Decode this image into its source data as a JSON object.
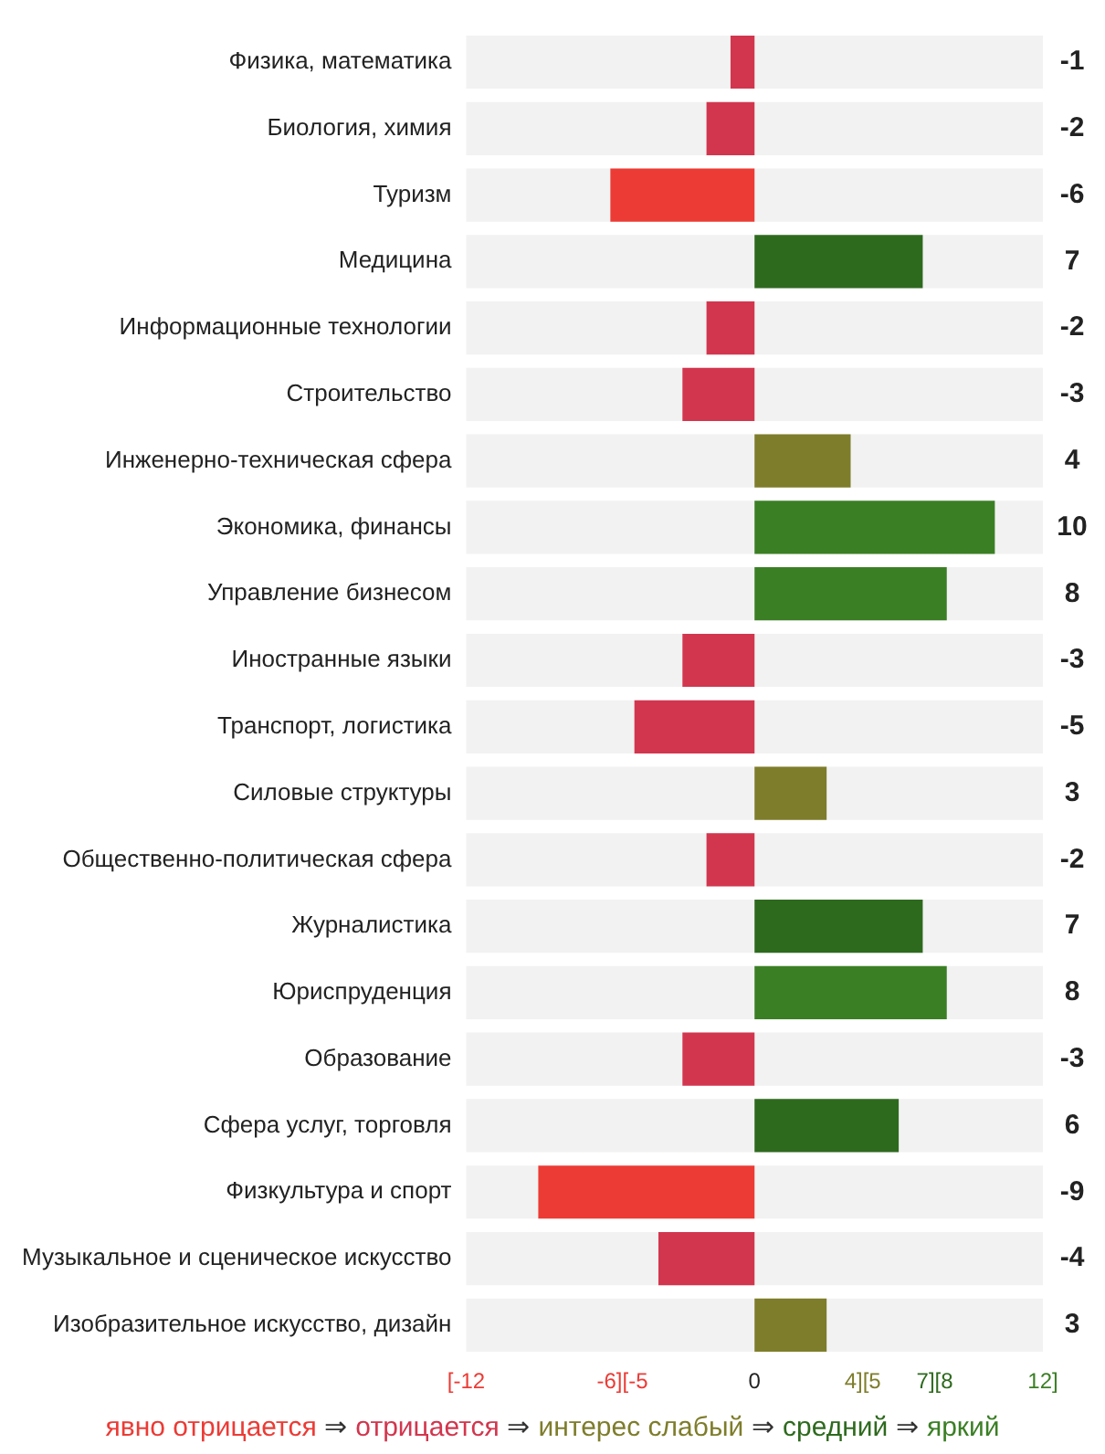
{
  "chart_data": {
    "type": "bar",
    "orientation": "horizontal",
    "data_labels": true,
    "grid": false,
    "legend": false,
    "categories": [
      "Физика, математика",
      "Биология, химия",
      "Туризм",
      "Медицина",
      "Информационные технологии",
      "Строительство",
      "Инженерно-техническая сфера",
      "Экономика, финансы",
      "Управление бизнесом",
      "Иностранные языки",
      "Транспорт, логистика",
      "Силовые структуры",
      "Общественно-политическая сфера",
      "Журналистика",
      "Юриспруденция",
      "Образование",
      "Сфера услуг, торговля",
      "Физкультура и спорт",
      "Музыкальное и сценическое искусство",
      "Изобразительное искусство, дизайн"
    ],
    "values": [
      -1,
      -2,
      -6,
      7,
      -2,
      -3,
      4,
      10,
      8,
      -3,
      -5,
      3,
      -2,
      7,
      8,
      -3,
      6,
      -9,
      -4,
      3
    ],
    "colors": [
      "#d2364e",
      "#d2364e",
      "#ec3b35",
      "#2e6a1e",
      "#d2364e",
      "#d2364e",
      "#7e7d2b",
      "#3b7f25",
      "#3b7f25",
      "#d2364e",
      "#d2364e",
      "#7e7d2b",
      "#d2364e",
      "#2e6a1e",
      "#3b7f25",
      "#d2364e",
      "#2e6a1e",
      "#ec3b35",
      "#d2364e",
      "#7e7d2b"
    ],
    "xlim": [
      -12,
      12
    ],
    "xticks": [
      {
        "value": -12,
        "label": "[-12"
      },
      {
        "value": -5.5,
        "label": "-6][-5"
      },
      0,
      {
        "value": 4.5,
        "label": "4][5"
      },
      {
        "value": 7.5,
        "label": "7][8"
      },
      {
        "value": 12,
        "label": "12]"
      }
    ],
    "annotations": [
      "явно отрицается ⇒ отрицается ⇒ интерес слабый ⇒ средний ⇒ яркий"
    ]
  }
}
